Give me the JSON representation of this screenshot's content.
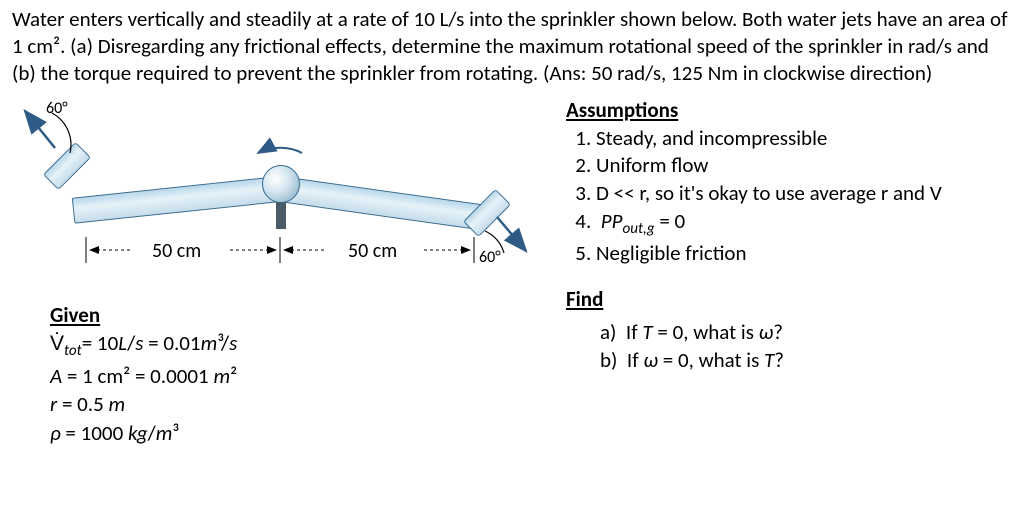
{
  "problem": {
    "text": "Water enters vertically and steadily at a rate of 10 L/s into the sprinkler shown below. Both water jets have an area of 1 cm². (a) Disregarding any frictional effects, determine the maximum rotational speed of the sprinkler in rad/s and (b) the torque required to prevent the sprinkler from rotating. (Ans: 50 rad/s, 125 Nm in clockwise direction)"
  },
  "diagram": {
    "arm_length_label": "50 cm",
    "angle_label": "60°",
    "colors": {
      "arm_fill_top": "#b8d8ea",
      "arm_fill_mid": "#e6f2f8",
      "arm_border": "#3a6b8f",
      "hub_light": "#ffffff",
      "hub_dark": "#7fa8c0",
      "stem": "#4a5a66",
      "arrow": "#2e5b86",
      "dim_line": "#000000"
    }
  },
  "given": {
    "title": "Given",
    "line1_html": "V̇<sub class='it'>tot</sub>= 10<span class='it'>L</span>/<span class='it'>s</span> = 0.01<span class='it'>m</span>³/<span class='it'>s</span>",
    "line2_html": "<span class='it'>A</span> = 1 cm² = 0.0001 <span class='it'>m</span>²",
    "line3_html": "<span class='it'>r</span> = 0.5 <span class='it'>m</span>",
    "line4_html": "<span class='it'>ρ</span> = 1000 <span class='it'>kg</span>/<span class='it'>m</span>³"
  },
  "assumptions": {
    "title": "Assumptions",
    "items": [
      "Steady, and incompressible",
      "Uniform flow",
      "D << r, so it's okay to use average r and V",
      "P<sub class='it'>out,g</sub> = 0",
      "Negligible friction"
    ]
  },
  "find": {
    "title": "Find",
    "a_html": "If <span class='it'>T</span> = 0, what is <span class='it'>ω</span>?",
    "b_html": "If <span class='it'>ω</span> = 0, what is <span class='it'>T</span>?"
  }
}
